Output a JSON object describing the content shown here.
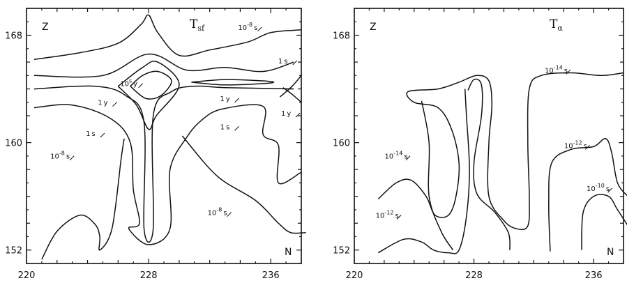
{
  "chart_data": [
    {
      "type": "contour",
      "title": "T",
      "title_sub": "sf",
      "xlabel": "N",
      "ylabel": "Z",
      "xlim": [
        220,
        238
      ],
      "ylim": [
        151,
        170
      ],
      "xticks": [
        220,
        228,
        236
      ],
      "yticks": [
        152,
        160,
        168
      ],
      "contour_labels": [
        {
          "text": "10",
          "sup": "-8",
          "unit": "s",
          "x": 234.5,
          "y": 168.4
        },
        {
          "text": "1",
          "sup": "",
          "unit": "s",
          "x": 236.8,
          "y": 165.9
        },
        {
          "text": "10",
          "sup": "s",
          "unit": "y",
          "x": 226.7,
          "y": 164.2
        },
        {
          "text": "1",
          "sup": "",
          "unit": "y",
          "x": 225.0,
          "y": 162.8
        },
        {
          "text": "1",
          "sup": "",
          "unit": "y",
          "x": 233.0,
          "y": 163.1
        },
        {
          "text": "1",
          "sup": "",
          "unit": "y",
          "x": 237.0,
          "y": 162.0
        },
        {
          "text": "1",
          "sup": "",
          "unit": "s",
          "x": 233.0,
          "y": 161.0
        },
        {
          "text": "1",
          "sup": "",
          "unit": "s",
          "x": 224.2,
          "y": 160.5
        },
        {
          "text": "10",
          "sup": "-8",
          "unit": "s",
          "x": 222.2,
          "y": 158.8
        },
        {
          "text": "10",
          "sup": "-8",
          "unit": "s",
          "x": 232.5,
          "y": 154.6
        }
      ],
      "contours": [
        {
          "level": "1y",
          "points": [
            [
              226.8,
              164.2
            ],
            [
              227.6,
              165.0
            ],
            [
              228.6,
              165.3
            ],
            [
              229.5,
              164.6
            ],
            [
              228.8,
              163.5
            ],
            [
              227.8,
              163.3
            ],
            [
              226.8,
              164.2
            ]
          ]
        },
        {
          "level": "1y",
          "points": [
            [
              230.8,
              164.5
            ],
            [
              233.0,
              164.3
            ],
            [
              235.5,
              164.4
            ],
            [
              236.2,
              164.5
            ],
            [
              235.5,
              164.6
            ],
            [
              233.0,
              164.7
            ],
            [
              230.8,
              164.5
            ]
          ]
        },
        {
          "level": "1y",
          "points": [
            [
              236.6,
              163.4
            ],
            [
              237.4,
              164.2
            ],
            [
              238.0,
              165.0
            ]
          ]
        },
        {
          "level": "1y",
          "points": [
            [
              236.8,
              164.1
            ],
            [
              237.4,
              163.6
            ],
            [
              238.0,
              163.0
            ]
          ]
        },
        {
          "level": "1s",
          "points": [
            [
              226.0,
              164.2
            ],
            [
              227.6,
              165.6
            ],
            [
              228.6,
              166.0
            ],
            [
              230.0,
              164.3
            ],
            [
              228.5,
              162.0
            ],
            [
              228.0,
              161.0
            ],
            [
              227.2,
              162.8
            ],
            [
              226.0,
              164.2
            ]
          ]
        },
        {
          "level": "1s",
          "points": [
            [
              220.5,
              165.0
            ],
            [
              225.0,
              165.0
            ],
            [
              228.0,
              166.6
            ],
            [
              230.5,
              165.4
            ],
            [
              233.0,
              165.6
            ],
            [
              235.5,
              165.3
            ],
            [
              237.5,
              166.0
            ]
          ]
        },
        {
          "level": "1s",
          "points": [
            [
              220.5,
              164.0
            ],
            [
              224.5,
              164.2
            ],
            [
              226.5,
              163.5
            ],
            [
              227.7,
              161.5
            ],
            [
              227.7,
              153.6
            ],
            [
              228.3,
              153.6
            ],
            [
              228.3,
              162.0
            ],
            [
              229.5,
              163.8
            ],
            [
              231.0,
              164.2
            ],
            [
              233.0,
              164.1
            ],
            [
              237.5,
              164.0
            ]
          ]
        },
        {
          "level": "10^-8 s",
          "points": [
            [
              220.5,
              166.2
            ],
            [
              223.5,
              166.7
            ],
            [
              226.0,
              167.4
            ],
            [
              227.5,
              168.8
            ],
            [
              228.0,
              169.5
            ],
            [
              228.6,
              168.2
            ],
            [
              230.0,
              166.5
            ],
            [
              232.0,
              166.9
            ],
            [
              234.5,
              167.5
            ],
            [
              236.0,
              168.2
            ],
            [
              238.0,
              168.4
            ]
          ]
        },
        {
          "level": "10^-8 s",
          "points": [
            [
              220.5,
              162.6
            ],
            [
              223.0,
              162.8
            ],
            [
              225.5,
              161.8
            ],
            [
              226.8,
              160.0
            ],
            [
              227.0,
              156.5
            ],
            [
              227.4,
              154.0
            ],
            [
              226.7,
              153.6
            ],
            [
              228.0,
              152.4
            ],
            [
              229.4,
              153.6
            ],
            [
              229.4,
              158.0
            ],
            [
              230.5,
              160.4
            ],
            [
              231.5,
              161.7
            ],
            [
              232.8,
              162.5
            ],
            [
              235.5,
              162.7
            ],
            [
              235.5,
              160.6
            ],
            [
              236.5,
              159.8
            ],
            [
              236.5,
              157.0
            ],
            [
              238.0,
              157.8
            ]
          ]
        },
        {
          "level": "10^-8 s",
          "points": [
            [
              221.0,
              151.3
            ],
            [
              222.0,
              153.4
            ],
            [
              223.5,
              154.6
            ],
            [
              224.5,
              153.9
            ],
            [
              224.8,
              153.0
            ],
            [
              224.8,
              152.0
            ],
            [
              225.6,
              153.6
            ],
            [
              226.2,
              158.8
            ],
            [
              226.4,
              160.3
            ]
          ]
        },
        {
          "level": "10^-8 s",
          "points": [
            [
              230.2,
              160.5
            ],
            [
              232.5,
              157.5
            ],
            [
              235.0,
              155.7
            ],
            [
              236.5,
              154.0
            ],
            [
              237.3,
              153.3
            ],
            [
              238.3,
              153.3
            ]
          ]
        }
      ]
    },
    {
      "type": "contour",
      "title": "T",
      "title_sub": "α",
      "xlabel": "N",
      "ylabel": "Z",
      "xlim": [
        220,
        238
      ],
      "ylim": [
        151,
        170
      ],
      "xticks": [
        220,
        228,
        236
      ],
      "yticks": [
        152,
        160,
        168
      ],
      "contour_labels": [
        {
          "text": "10",
          "sup": "-14",
          "unit": "s",
          "x": 233.5,
          "y": 165.2
        },
        {
          "text": "10",
          "sup": "-14",
          "unit": "s",
          "x": 222.8,
          "y": 158.8
        },
        {
          "text": "10",
          "sup": "-12",
          "unit": "s",
          "x": 234.8,
          "y": 159.6
        },
        {
          "text": "10",
          "sup": "-10",
          "unit": "s",
          "x": 236.3,
          "y": 156.4
        },
        {
          "text": "10",
          "sup": "-12",
          "unit": "s",
          "x": 222.2,
          "y": 154.4
        }
      ],
      "contours": [
        {
          "level": "10^-14 s",
          "points": [
            [
              221.6,
              155.8
            ],
            [
              222.8,
              157.0
            ],
            [
              223.8,
              157.2
            ],
            [
              224.8,
              156.0
            ],
            [
              225.4,
              154.6
            ],
            [
              226.3,
              154.6
            ],
            [
              226.8,
              156.0
            ],
            [
              227.0,
              158.5
            ],
            [
              226.5,
              161.0
            ],
            [
              225.6,
              162.6
            ],
            [
              224.0,
              163.0
            ],
            [
              223.6,
              163.8
            ],
            [
              225.6,
              164.0
            ],
            [
              227.0,
              164.5
            ],
            [
              228.2,
              165.0
            ],
            [
              229.0,
              164.6
            ],
            [
              229.2,
              162.8
            ],
            [
              229.0,
              160.0
            ],
            [
              229.0,
              156.0
            ],
            [
              230.0,
              154.2
            ],
            [
              230.8,
              153.6
            ],
            [
              231.6,
              153.8
            ],
            [
              231.7,
              156.0
            ],
            [
              231.6,
              160.0
            ],
            [
              231.7,
              164.0
            ],
            [
              232.5,
              165.0
            ],
            [
              234.5,
              165.2
            ],
            [
              236.5,
              165.0
            ],
            [
              238.0,
              165.2
            ]
          ]
        },
        {
          "level": "10^-14 s",
          "points": [
            [
              227.6,
              163.9
            ],
            [
              228.0,
              164.7
            ],
            [
              228.5,
              164.3
            ],
            [
              228.5,
              162.0
            ],
            [
              228.0,
              158.5
            ],
            [
              228.2,
              156.2
            ],
            [
              229.4,
              154.8
            ],
            [
              230.3,
              153.3
            ],
            [
              230.4,
              152.0
            ]
          ]
        },
        {
          "level": "10^-14 s",
          "points": [
            [
              224.5,
              163.1
            ],
            [
              225.0,
              160.0
            ],
            [
              225.0,
              156.0
            ],
            [
              225.8,
              153.4
            ],
            [
              226.6,
              152.0
            ]
          ]
        },
        {
          "level": "10^-12 s",
          "points": [
            [
              221.6,
              151.8
            ],
            [
              223.3,
              152.8
            ],
            [
              224.5,
              152.6
            ],
            [
              225.3,
              152.0
            ],
            [
              226.3,
              151.8
            ],
            [
              227.0,
              152.0
            ],
            [
              227.5,
              154.5
            ],
            [
              227.7,
              158.0
            ],
            [
              227.5,
              162.0
            ],
            [
              227.4,
              164.0
            ]
          ]
        },
        {
          "level": "10^-12 s",
          "points": [
            [
              233.1,
              151.9
            ],
            [
              233.0,
              155.5
            ],
            [
              233.2,
              158.5
            ],
            [
              234.5,
              159.5
            ],
            [
              236.0,
              159.7
            ],
            [
              236.8,
              160.3
            ],
            [
              237.2,
              159.3
            ],
            [
              237.6,
              157.0
            ],
            [
              238.3,
              156.0
            ]
          ]
        },
        {
          "level": "10^-10 s",
          "points": [
            [
              235.2,
              152.0
            ],
            [
              235.3,
              154.8
            ],
            [
              236.0,
              156.0
            ],
            [
              237.0,
              156.0
            ],
            [
              237.6,
              155.0
            ],
            [
              238.3,
              153.8
            ]
          ]
        }
      ]
    }
  ]
}
